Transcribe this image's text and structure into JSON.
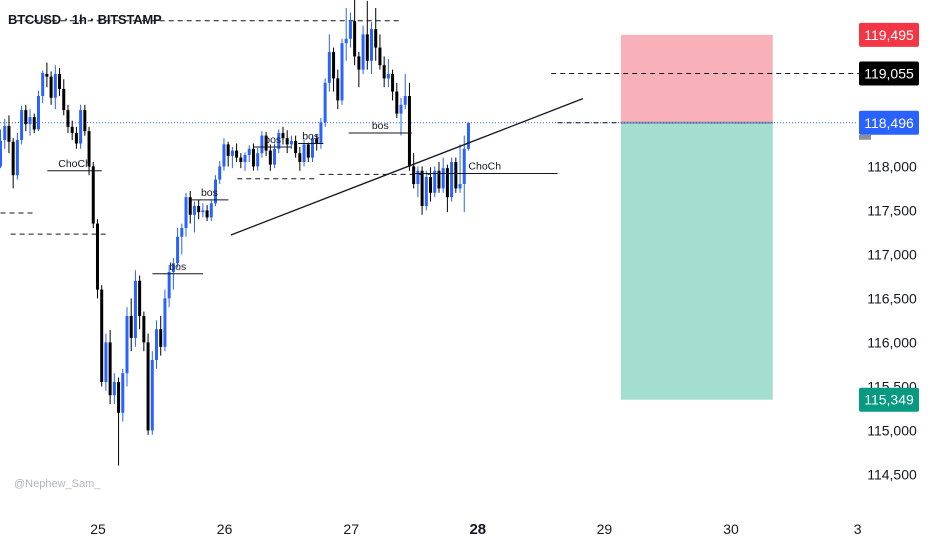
{
  "header": {
    "title": "BTCUSD · 1h · BITSTAMP"
  },
  "watermark": "@Nephew_Sam_",
  "colors": {
    "bull": "#2962ff",
    "bear": "#000000",
    "stop_zone": "#f7a8b0",
    "target_zone": "#9edccb",
    "stop_tag": "#f23645",
    "entry_tag": "#2962ff",
    "level_tag": "#000000",
    "target_tag": "#089981",
    "current_line": "#2962ff"
  },
  "chart_data": {
    "type": "candlestick",
    "ylim": [
      114300,
      119800
    ],
    "y_ticks": [
      114500,
      115000,
      115500,
      116000,
      116500,
      117000,
      117500,
      118000
    ],
    "y_tick_labels": [
      "114,500",
      "115,000",
      "115,500",
      "116,000",
      "116,500",
      "117,000",
      "117,500",
      "118,000"
    ],
    "x_ticks": [
      {
        "label": "25",
        "t": 24.37,
        "bold": false
      },
      {
        "label": "26",
        "t": 25.37,
        "bold": false
      },
      {
        "label": "27",
        "t": 26.37,
        "bold": false
      },
      {
        "label": "28",
        "t": 27.37,
        "bold": true
      },
      {
        "label": "29",
        "t": 28.37,
        "bold": false
      },
      {
        "label": "30",
        "t": 29.37,
        "bold": false
      },
      {
        "label": "3",
        "t": 30.37,
        "bold": false
      }
    ],
    "candles_t0": 23.6,
    "candles_dt": 0.0333,
    "candles": [
      [
        118000,
        118420,
        117980,
        118290
      ],
      [
        118300,
        118540,
        118200,
        118460
      ],
      [
        118460,
        118580,
        118150,
        118280
      ],
      [
        118280,
        118320,
        117750,
        117900
      ],
      [
        117900,
        118380,
        117850,
        118300
      ],
      [
        118300,
        118690,
        118250,
        118640
      ],
      [
        118640,
        118700,
        118400,
        118480
      ],
      [
        118480,
        118650,
        118350,
        118560
      ],
      [
        118560,
        118600,
        118380,
        118420
      ],
      [
        118420,
        118860,
        118400,
        118800
      ],
      [
        118800,
        119090,
        118720,
        119060
      ],
      [
        119050,
        119180,
        118900,
        119020
      ],
      [
        119020,
        119080,
        118700,
        118780
      ],
      [
        118780,
        119150,
        118650,
        119050
      ],
      [
        119050,
        119120,
        118800,
        118880
      ],
      [
        118880,
        118990,
        118580,
        118640
      ],
      [
        118640,
        118700,
        118380,
        118450
      ],
      [
        118450,
        118520,
        118300,
        118380
      ],
      [
        118380,
        118450,
        118200,
        118260
      ],
      [
        118260,
        118700,
        118200,
        118640
      ],
      [
        118640,
        118700,
        118350,
        118400
      ],
      [
        118400,
        118450,
        117900,
        118000
      ],
      [
        118000,
        118050,
        117300,
        117350
      ],
      [
        117350,
        117400,
        116500,
        116600
      ],
      [
        116600,
        116650,
        115500,
        115550
      ],
      [
        115550,
        116100,
        115450,
        116000
      ],
      [
        116000,
        116140,
        115300,
        115400
      ],
      [
        115400,
        115650,
        115300,
        115550
      ],
      [
        115550,
        115600,
        114600,
        115200
      ],
      [
        115200,
        115700,
        115100,
        115650
      ],
      [
        115650,
        116400,
        115500,
        116300
      ],
      [
        116300,
        116500,
        115900,
        116050
      ],
      [
        116050,
        116820,
        115950,
        116700
      ],
      [
        116700,
        116760,
        116150,
        116300
      ],
      [
        116300,
        116350,
        115900,
        116000
      ],
      [
        116000,
        116100,
        114950,
        115000
      ],
      [
        115000,
        115900,
        114950,
        115800
      ],
      [
        115800,
        116250,
        115700,
        116150
      ],
      [
        116150,
        116300,
        115850,
        115950
      ],
      [
        115950,
        116600,
        115900,
        116500
      ],
      [
        116500,
        116880,
        116400,
        116800
      ],
      [
        116800,
        116960,
        116600,
        116900
      ],
      [
        116900,
        117300,
        116850,
        117200
      ],
      [
        117200,
        117350,
        117000,
        117300
      ],
      [
        117300,
        117700,
        117200,
        117650
      ],
      [
        117650,
        117720,
        117350,
        117450
      ],
      [
        117450,
        117600,
        117250,
        117550
      ],
      [
        117550,
        117620,
        117400,
        117480
      ],
      [
        117480,
        117580,
        117420,
        117500
      ],
      [
        117500,
        117560,
        117380,
        117420
      ],
      [
        117420,
        117620,
        117380,
        117580
      ],
      [
        117580,
        117900,
        117550,
        117850
      ],
      [
        117850,
        118060,
        117800,
        118000
      ],
      [
        118000,
        118320,
        117950,
        118250
      ],
      [
        118250,
        118280,
        118000,
        118120
      ],
      [
        118120,
        118220,
        117980,
        118180
      ],
      [
        118180,
        118260,
        118050,
        118100
      ],
      [
        118100,
        118150,
        117980,
        118050
      ],
      [
        118050,
        118160,
        117950,
        118130
      ],
      [
        118130,
        118240,
        118050,
        118200
      ],
      [
        118200,
        118260,
        117950,
        118000
      ],
      [
        118000,
        118210,
        117950,
        118150
      ],
      [
        118150,
        118400,
        118100,
        118350
      ],
      [
        118350,
        118390,
        118120,
        118180
      ],
      [
        118180,
        118250,
        117950,
        118020
      ],
      [
        118020,
        118260,
        117980,
        118200
      ],
      [
        118200,
        118420,
        118150,
        118380
      ],
      [
        118380,
        118450,
        118250,
        118320
      ],
      [
        118320,
        118410,
        118150,
        118250
      ],
      [
        118250,
        118350,
        118200,
        118290
      ],
      [
        118290,
        118350,
        118100,
        118150
      ],
      [
        118150,
        118220,
        117950,
        118050
      ],
      [
        118050,
        118300,
        118000,
        118250
      ],
      [
        118250,
        118270,
        118050,
        118100
      ],
      [
        118100,
        118360,
        118050,
        118320
      ],
      [
        118320,
        118360,
        118180,
        118260
      ],
      [
        118260,
        118550,
        118200,
        118500
      ],
      [
        118500,
        119000,
        118450,
        118950
      ],
      [
        118950,
        119500,
        118850,
        119300
      ],
      [
        119300,
        119350,
        118850,
        119000
      ],
      [
        119000,
        119100,
        118650,
        118750
      ],
      [
        118750,
        119450,
        118700,
        119400
      ],
      [
        119400,
        119800,
        119200,
        119450
      ],
      [
        119450,
        119750,
        119350,
        119650
      ],
      [
        119650,
        119900,
        119150,
        119250
      ],
      [
        119250,
        119300,
        118900,
        119100
      ],
      [
        119100,
        119600,
        119050,
        119500
      ],
      [
        119500,
        119880,
        119100,
        119200
      ],
      [
        119200,
        119640,
        119050,
        119560
      ],
      [
        119560,
        119800,
        119200,
        119350
      ],
      [
        119350,
        119500,
        119100,
        119150
      ],
      [
        119150,
        119250,
        118900,
        119000
      ],
      [
        119000,
        119220,
        118900,
        119050
      ],
      [
        119050,
        119100,
        118750,
        118850
      ],
      [
        118850,
        118950,
        118550,
        118600
      ],
      [
        118600,
        118780,
        118350,
        118700
      ],
      [
        118700,
        119050,
        118650,
        118800
      ],
      [
        118800,
        118950,
        117950,
        118000
      ],
      [
        118000,
        118150,
        117750,
        117800
      ],
      [
        117800,
        118000,
        117650,
        117950
      ],
      [
        117950,
        118000,
        117450,
        117550
      ],
      [
        117550,
        117950,
        117500,
        117880
      ],
      [
        117880,
        117990,
        117600,
        117700
      ],
      [
        117700,
        118000,
        117650,
        117950
      ],
      [
        117950,
        118050,
        117700,
        117750
      ],
      [
        117750,
        118100,
        117700,
        117980
      ],
      [
        117980,
        118020,
        117480,
        117650
      ],
      [
        117650,
        118100,
        117600,
        118050
      ],
      [
        118050,
        118100,
        117700,
        117750
      ],
      [
        117750,
        118250,
        117700,
        117800
      ],
      [
        117800,
        118350,
        117480,
        118200
      ],
      [
        118200,
        118496,
        118180,
        118496
      ]
    ],
    "structure_annotations": [
      {
        "type": "ChoCh",
        "text": "ChoCh",
        "t1": 23.97,
        "t2": 24.4,
        "price": 117950
      },
      {
        "type": "ChoCh",
        "text": "ChoCh",
        "t1": 26.85,
        "t2": 28.0,
        "price": 117920
      },
      {
        "type": "bos",
        "text": "bos",
        "t1": 24.8,
        "t2": 25.2,
        "price": 116780
      },
      {
        "type": "bos",
        "text": "bos",
        "t1": 25.1,
        "t2": 25.4,
        "price": 117620
      },
      {
        "type": "bos",
        "text": "bos",
        "t1": 25.6,
        "t2": 25.9,
        "price": 118220
      },
      {
        "type": "bos",
        "text": "bos",
        "t1": 25.95,
        "t2": 26.15,
        "price": 118260
      },
      {
        "type": "bos",
        "text": "bos",
        "t1": 26.35,
        "t2": 26.85,
        "price": 118380
      }
    ],
    "dashed_levels": [
      {
        "price": 119655,
        "t1": 23.72,
        "t2": 26.75
      },
      {
        "price": 117470,
        "t1": 23.6,
        "t2": 23.87
      },
      {
        "price": 117230,
        "t1": 23.68,
        "t2": 24.45
      },
      {
        "price": 117860,
        "t1": 25.47,
        "t2": 26.1
      },
      {
        "price": 117910,
        "t1": 26.12,
        "t2": 26.99
      },
      {
        "price": 119055,
        "t1": 27.95,
        "t2": 30.45
      },
      {
        "price": 118496,
        "t1": 28.0,
        "t2": 28.5
      }
    ],
    "trendline": {
      "t1": 25.42,
      "p1": 117220,
      "t2": 28.2,
      "p2": 118770
    },
    "current_price_line": 118496,
    "position": {
      "t1": 28.5,
      "t2": 29.7,
      "entry": 118496,
      "stop": 119495,
      "target": 115349
    },
    "price_tags": [
      {
        "label": "119,495",
        "price": 119495,
        "kind": "stop"
      },
      {
        "label": "119,055",
        "price": 119055,
        "kind": "level"
      },
      {
        "label": "118,496",
        "price": 118496,
        "kind": "entry"
      },
      {
        "label": "115,349",
        "price": 115349,
        "kind": "target"
      }
    ]
  }
}
